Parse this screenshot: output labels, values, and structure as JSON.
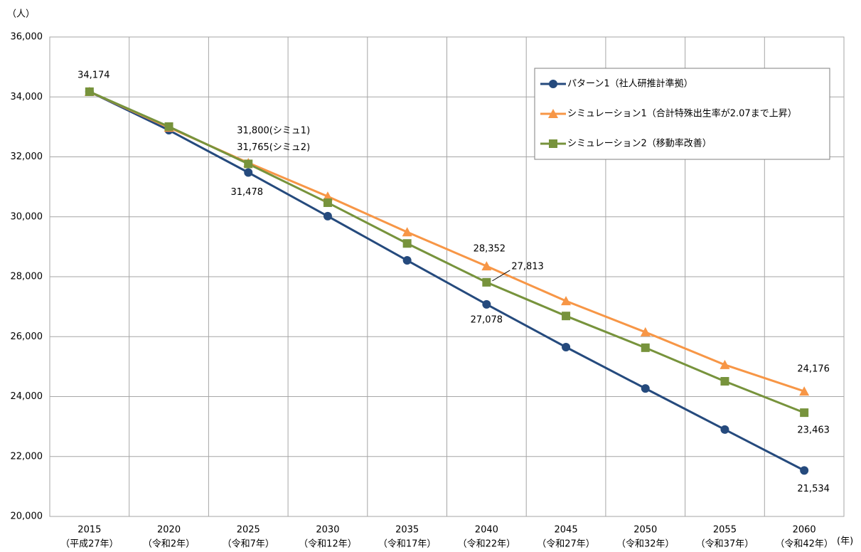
{
  "chart_data": {
    "type": "line",
    "y_axis_label": "（人）",
    "x_axis_label": "(年)",
    "categories": [
      "2015",
      "2020",
      "2025",
      "2030",
      "2035",
      "2040",
      "2045",
      "2050",
      "2055",
      "2060"
    ],
    "category_sublabels": [
      "（平成27年）",
      "（令和2年）",
      "（令和7年）",
      "（令和12年）",
      "（令和17年）",
      "（令和22年）",
      "（令和27年）",
      "（令和32年）",
      "（令和37年）",
      "（令和42年）"
    ],
    "series": [
      {
        "name": "パターン1（社人研推計準拠）",
        "color": "#254a7d",
        "marker": "circle",
        "values": [
          34174,
          32890,
          31478,
          30020,
          28545,
          27078,
          25650,
          24270,
          22900,
          21534
        ],
        "value_labels": [
          "34,174",
          null,
          "31,478",
          null,
          null,
          "27,078",
          null,
          null,
          null,
          "21,534"
        ]
      },
      {
        "name": "シミュレーション1（合計特殊出生率が2.07まで上昇）",
        "color": "#f79646",
        "marker": "triangle",
        "values": [
          34174,
          32980,
          31800,
          30680,
          29490,
          28352,
          27190,
          26150,
          25060,
          24176
        ],
        "value_labels": [
          null,
          null,
          "31,800(シミュ1)",
          null,
          null,
          "28,352",
          null,
          null,
          null,
          "24,176"
        ]
      },
      {
        "name": "シミュレーション2（移動率改善）",
        "color": "#77933c",
        "marker": "square",
        "values": [
          34174,
          33010,
          31765,
          30470,
          29110,
          27813,
          26690,
          25630,
          24510,
          23463
        ],
        "value_labels": [
          null,
          null,
          "31,765(シミュ2)",
          null,
          null,
          "27,813",
          null,
          null,
          null,
          "23,463"
        ]
      }
    ],
    "ylim": [
      20000,
      36000
    ],
    "yticks": [
      {
        "value": 20000,
        "label": "20,000"
      },
      {
        "value": 22000,
        "label": "22,000"
      },
      {
        "value": 24000,
        "label": "24,000"
      },
      {
        "value": 26000,
        "label": "26,000"
      },
      {
        "value": 28000,
        "label": "28,000"
      },
      {
        "value": 30000,
        "label": "30,000"
      },
      {
        "value": 32000,
        "label": "32,000"
      },
      {
        "value": 34000,
        "label": "34,000"
      },
      {
        "value": 36000,
        "label": "36,000"
      }
    ],
    "grid": true,
    "legend": "upper right"
  }
}
